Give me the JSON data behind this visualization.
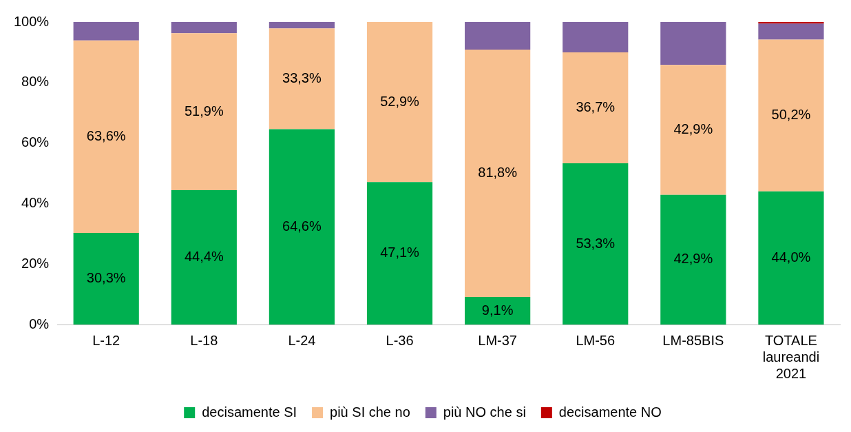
{
  "chart_data": {
    "type": "bar",
    "stacked": true,
    "categories": [
      "L-12",
      "L-18",
      "L-24",
      "L-36",
      "LM-37",
      "LM-56",
      "LM-85BIS",
      "TOTALE laureandi 2021"
    ],
    "series": [
      {
        "name": "decisamente SI",
        "color": "#00b050",
        "values": [
          30.3,
          44.4,
          64.6,
          47.1,
          9.1,
          53.3,
          42.9,
          44.0
        ],
        "value_labels": [
          "30,3%",
          "44,4%",
          "64,6%",
          "47,1%",
          "9,1%",
          "53,3%",
          "42,9%",
          "44,0%"
        ]
      },
      {
        "name": "più SI che no",
        "color": "#f8c08f",
        "values": [
          63.6,
          51.9,
          33.3,
          52.9,
          81.8,
          36.7,
          42.9,
          50.2
        ],
        "value_labels": [
          "63,6%",
          "51,9%",
          "33,3%",
          "52,9%",
          "81,8%",
          "36,7%",
          "42,9%",
          "50,2%"
        ]
      },
      {
        "name": "più NO che si",
        "color": "#8064a2",
        "values": [
          6.1,
          3.7,
          2.1,
          0,
          9.1,
          10.0,
          14.2,
          5.3
        ]
      },
      {
        "name": "decisamente NO",
        "color": "#c00000",
        "values": [
          0,
          0,
          0,
          0,
          0,
          0,
          0,
          0.5
        ]
      }
    ],
    "ylim": [
      0,
      100
    ],
    "yticks": [
      {
        "value": 0,
        "label": "0%"
      },
      {
        "value": 20,
        "label": "20%"
      },
      {
        "value": 40,
        "label": "40%"
      },
      {
        "value": 60,
        "label": "60%"
      },
      {
        "value": 80,
        "label": "80%"
      },
      {
        "value": 100,
        "label": "100%"
      }
    ],
    "grid": false,
    "legend": "bottom"
  }
}
